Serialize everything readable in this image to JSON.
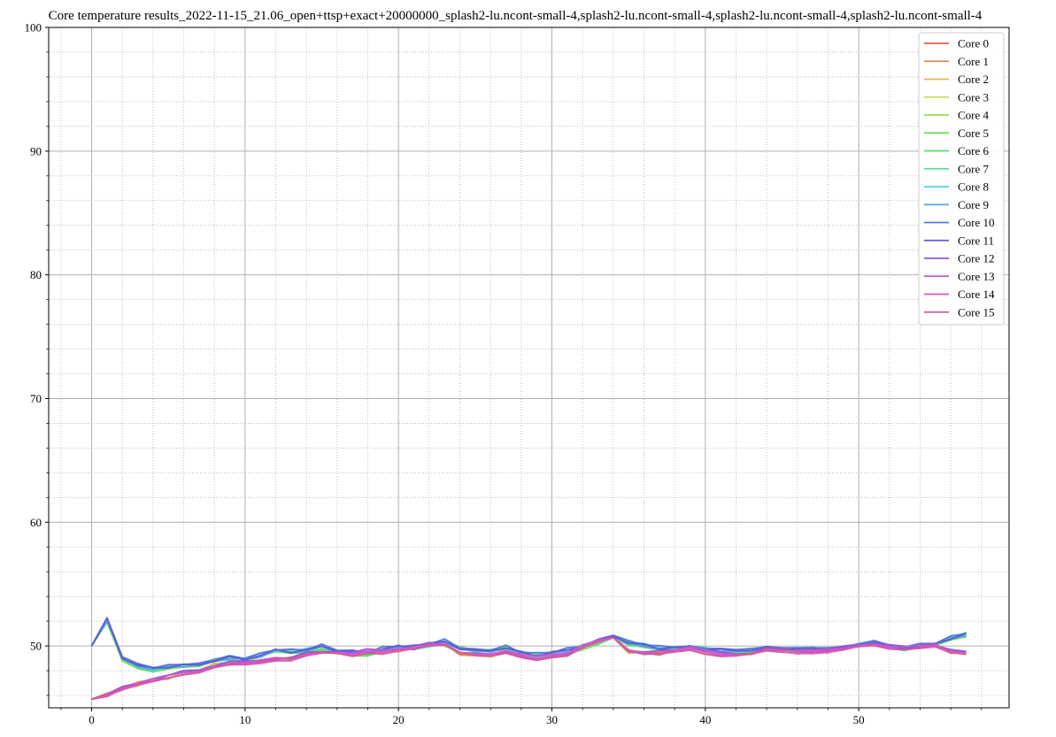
{
  "chart_data": {
    "type": "line",
    "title": "Core temperature results_2022-11-15_21.06_open+ttsp+exact+20000000_splash2-lu.ncont-small-4,splash2-lu.ncont-small-4,splash2-lu.ncont-small-4,splash2-lu.ncont-small-4",
    "xlabel": "",
    "ylabel": "",
    "xlim": [
      -2.8,
      59.8
    ],
    "ylim": [
      45,
      100
    ],
    "x_ticks": [
      0,
      10,
      20,
      30,
      40,
      50
    ],
    "y_ticks": [
      50,
      60,
      70,
      80,
      90,
      100
    ],
    "grid": "major solid, minor dotted",
    "legend_position": "top-right",
    "x": [
      0,
      1,
      2,
      3,
      4,
      5,
      6,
      7,
      8,
      9,
      10,
      11,
      12,
      13,
      14,
      15,
      16,
      17,
      18,
      19,
      20,
      21,
      22,
      23,
      24,
      25,
      26,
      27,
      28,
      29,
      30,
      31,
      32,
      33,
      34,
      35,
      36,
      37,
      38,
      39,
      40,
      41,
      42,
      43,
      44,
      45,
      46,
      47,
      48,
      49,
      50,
      51,
      52,
      53,
      54,
      55,
      56,
      57
    ],
    "base_low": [
      45.7,
      46.0,
      46.5,
      46.9,
      47.2,
      47.5,
      47.8,
      48.0,
      48.4,
      48.6,
      48.6,
      48.7,
      48.9,
      48.9,
      49.3,
      49.5,
      49.5,
      49.3,
      49.6,
      49.5,
      49.7,
      49.8,
      50.1,
      50.1,
      49.4,
      49.2,
      49.2,
      49.5,
      49.2,
      49.0,
      49.2,
      49.3,
      49.9,
      50.3,
      50.6,
      49.6,
      49.4,
      49.4,
      49.6,
      49.8,
      49.5,
      49.3,
      49.3,
      49.4,
      49.7,
      49.6,
      49.5,
      49.5,
      49.6,
      49.8,
      50.1,
      50.2,
      49.9,
      49.8,
      49.9,
      50.0,
      49.5,
      49.4
    ],
    "base_high": [
      50.0,
      52.1,
      49.0,
      48.4,
      48.1,
      48.3,
      48.4,
      48.4,
      48.8,
      49.0,
      48.9,
      49.2,
      49.6,
      49.5,
      49.6,
      49.9,
      49.6,
      49.4,
      49.4,
      49.7,
      49.9,
      49.8,
      50.1,
      50.3,
      49.8,
      49.5,
      49.6,
      49.8,
      49.4,
      49.2,
      49.4,
      49.6,
      49.9,
      50.3,
      50.8,
      50.2,
      50.0,
      49.8,
      49.8,
      49.8,
      49.7,
      49.6,
      49.6,
      49.6,
      49.8,
      49.7,
      49.7,
      49.7,
      49.7,
      49.8,
      50.0,
      50.3,
      49.9,
      49.8,
      50.0,
      50.1,
      50.6,
      50.9
    ],
    "series": [
      {
        "name": "Core 0",
        "color": "#db5f57",
        "group": "low",
        "offset": 0.05
      },
      {
        "name": "Core 1",
        "color": "#db8c57",
        "group": "low",
        "offset": -0.05
      },
      {
        "name": "Core 2",
        "color": "#dbb957",
        "group": "low",
        "offset": 0.1
      },
      {
        "name": "Core 3",
        "color": "#c4db57",
        "group": "low",
        "offset": 0.0
      },
      {
        "name": "Core 4",
        "color": "#98db57",
        "group": "high",
        "offset": 0.05
      },
      {
        "name": "Core 5",
        "color": "#6bdb57",
        "group": "high",
        "offset": -0.1
      },
      {
        "name": "Core 6",
        "color": "#57db6f",
        "group": "high",
        "offset": 0.0
      },
      {
        "name": "Core 7",
        "color": "#57db9b",
        "group": "high",
        "offset": -0.05
      },
      {
        "name": "Core 8",
        "color": "#57d3db",
        "group": "high",
        "offset": 0.1
      },
      {
        "name": "Core 9",
        "color": "#57a6db",
        "group": "high",
        "offset": 0.0
      },
      {
        "name": "Core 10",
        "color": "#5779db",
        "group": "high",
        "offset": 0.15
      },
      {
        "name": "Core 11",
        "color": "#6157db",
        "group": "high",
        "offset": 0.05
      },
      {
        "name": "Core 12",
        "color": "#8e57db",
        "group": "low",
        "offset": 0.1
      },
      {
        "name": "Core 13",
        "color": "#bb57db",
        "group": "low",
        "offset": 0.05
      },
      {
        "name": "Core 14",
        "color": "#db57c8",
        "group": "low",
        "offset": 0.0
      },
      {
        "name": "Core 15",
        "color": "#db579c",
        "group": "low",
        "offset": -0.05
      }
    ]
  }
}
